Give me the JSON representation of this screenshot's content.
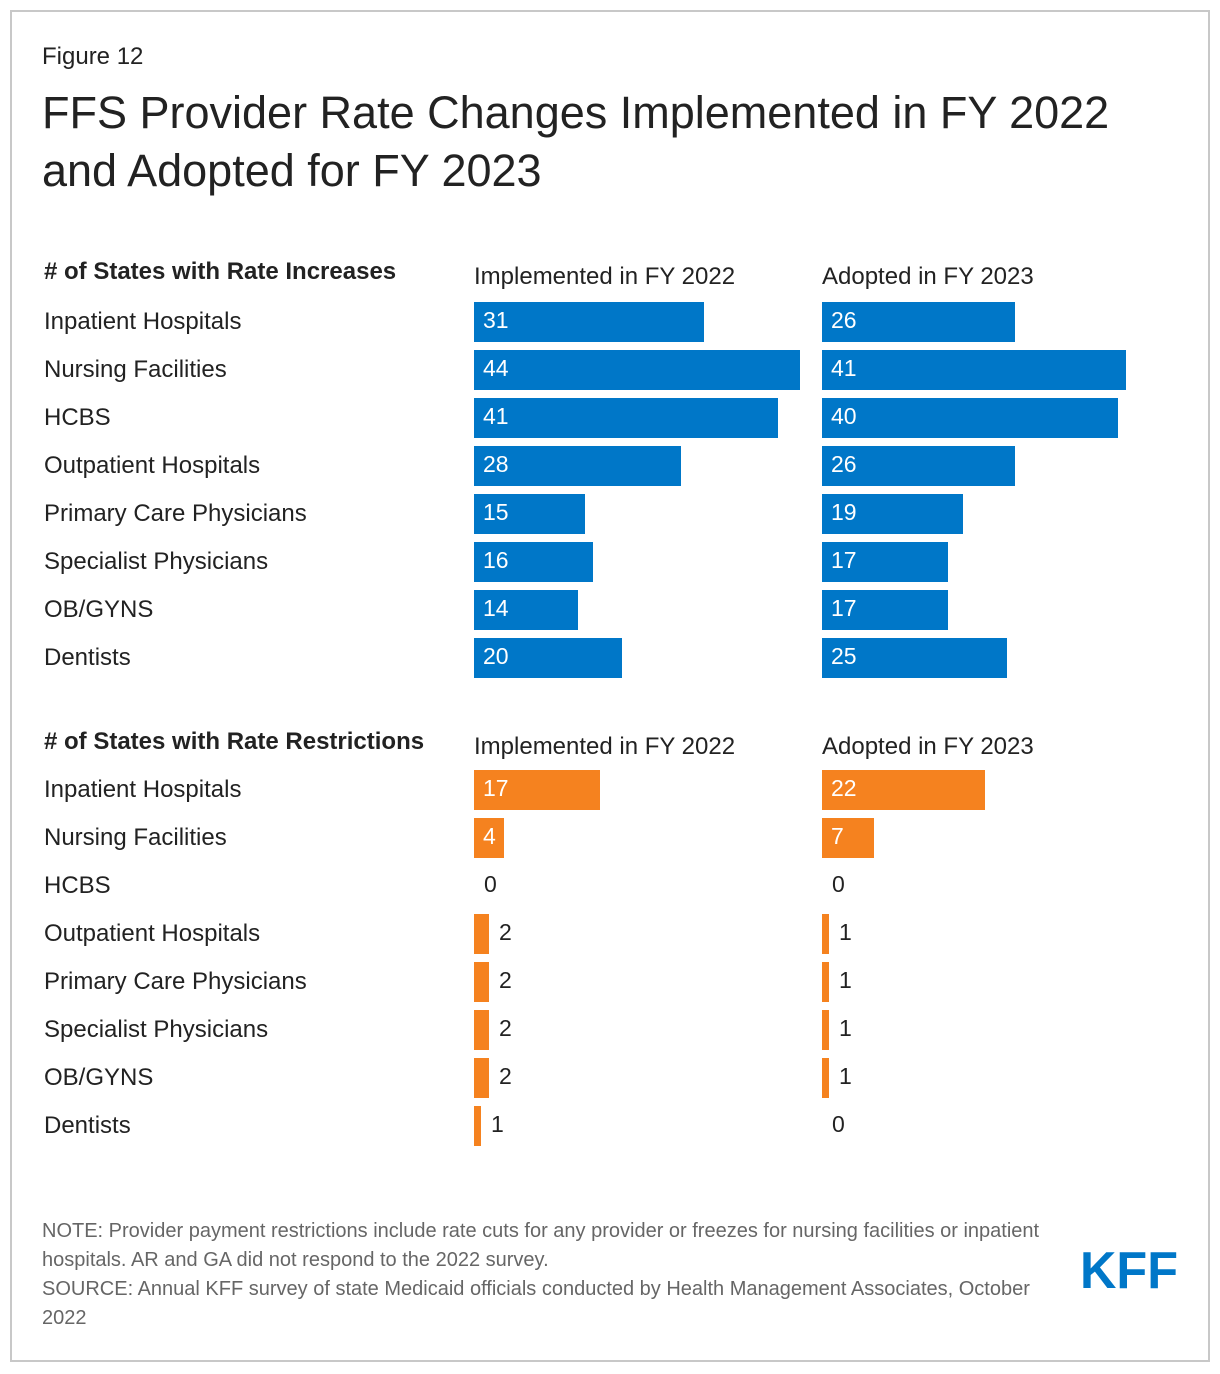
{
  "figure_label": "Figure 12",
  "title": "FFS Provider Rate Changes Implemented in FY 2022 and Adopted for FY 2023",
  "colors": {
    "increase": "#0077c8",
    "restriction": "#f5821f",
    "logo": "#0077c8"
  },
  "logo_text": "KFF",
  "note": "NOTE: Provider payment restrictions include rate cuts for any provider or freezes for nursing facilities or inpatient hospitals. AR and GA did not respond to the 2022 survey.",
  "source": "SOURCE: Annual KFF survey of state Medicaid officials conducted by Health Management Associates, October 2022",
  "chart_data": [
    {
      "type": "bar",
      "title": "# of States with Rate Increases",
      "categories": [
        "Inpatient Hospitals",
        "Nursing Facilities",
        "HCBS",
        "Outpatient Hospitals",
        "Primary Care Physicians",
        "Specialist Physicians",
        "OB/GYNS",
        "Dentists"
      ],
      "series": [
        {
          "name": "Implemented in FY 2022",
          "values": [
            31,
            44,
            41,
            28,
            15,
            16,
            14,
            20
          ]
        },
        {
          "name": "Adopted in FY 2023",
          "values": [
            26,
            41,
            40,
            26,
            19,
            17,
            17,
            25
          ]
        }
      ],
      "color": "#0077c8",
      "xlim": [
        0,
        44
      ]
    },
    {
      "type": "bar",
      "title": "# of States with Rate Restrictions",
      "categories": [
        "Inpatient Hospitals",
        "Nursing Facilities",
        "HCBS",
        "Outpatient Hospitals",
        "Primary Care Physicians",
        "Specialist Physicians",
        "OB/GYNS",
        "Dentists"
      ],
      "series": [
        {
          "name": "Implemented in FY 2022",
          "values": [
            17,
            4,
            0,
            2,
            2,
            2,
            2,
            1
          ]
        },
        {
          "name": "Adopted in FY 2023",
          "values": [
            22,
            7,
            0,
            1,
            1,
            1,
            1,
            0
          ]
        }
      ],
      "color": "#f5821f",
      "xlim": [
        0,
        44
      ]
    }
  ]
}
